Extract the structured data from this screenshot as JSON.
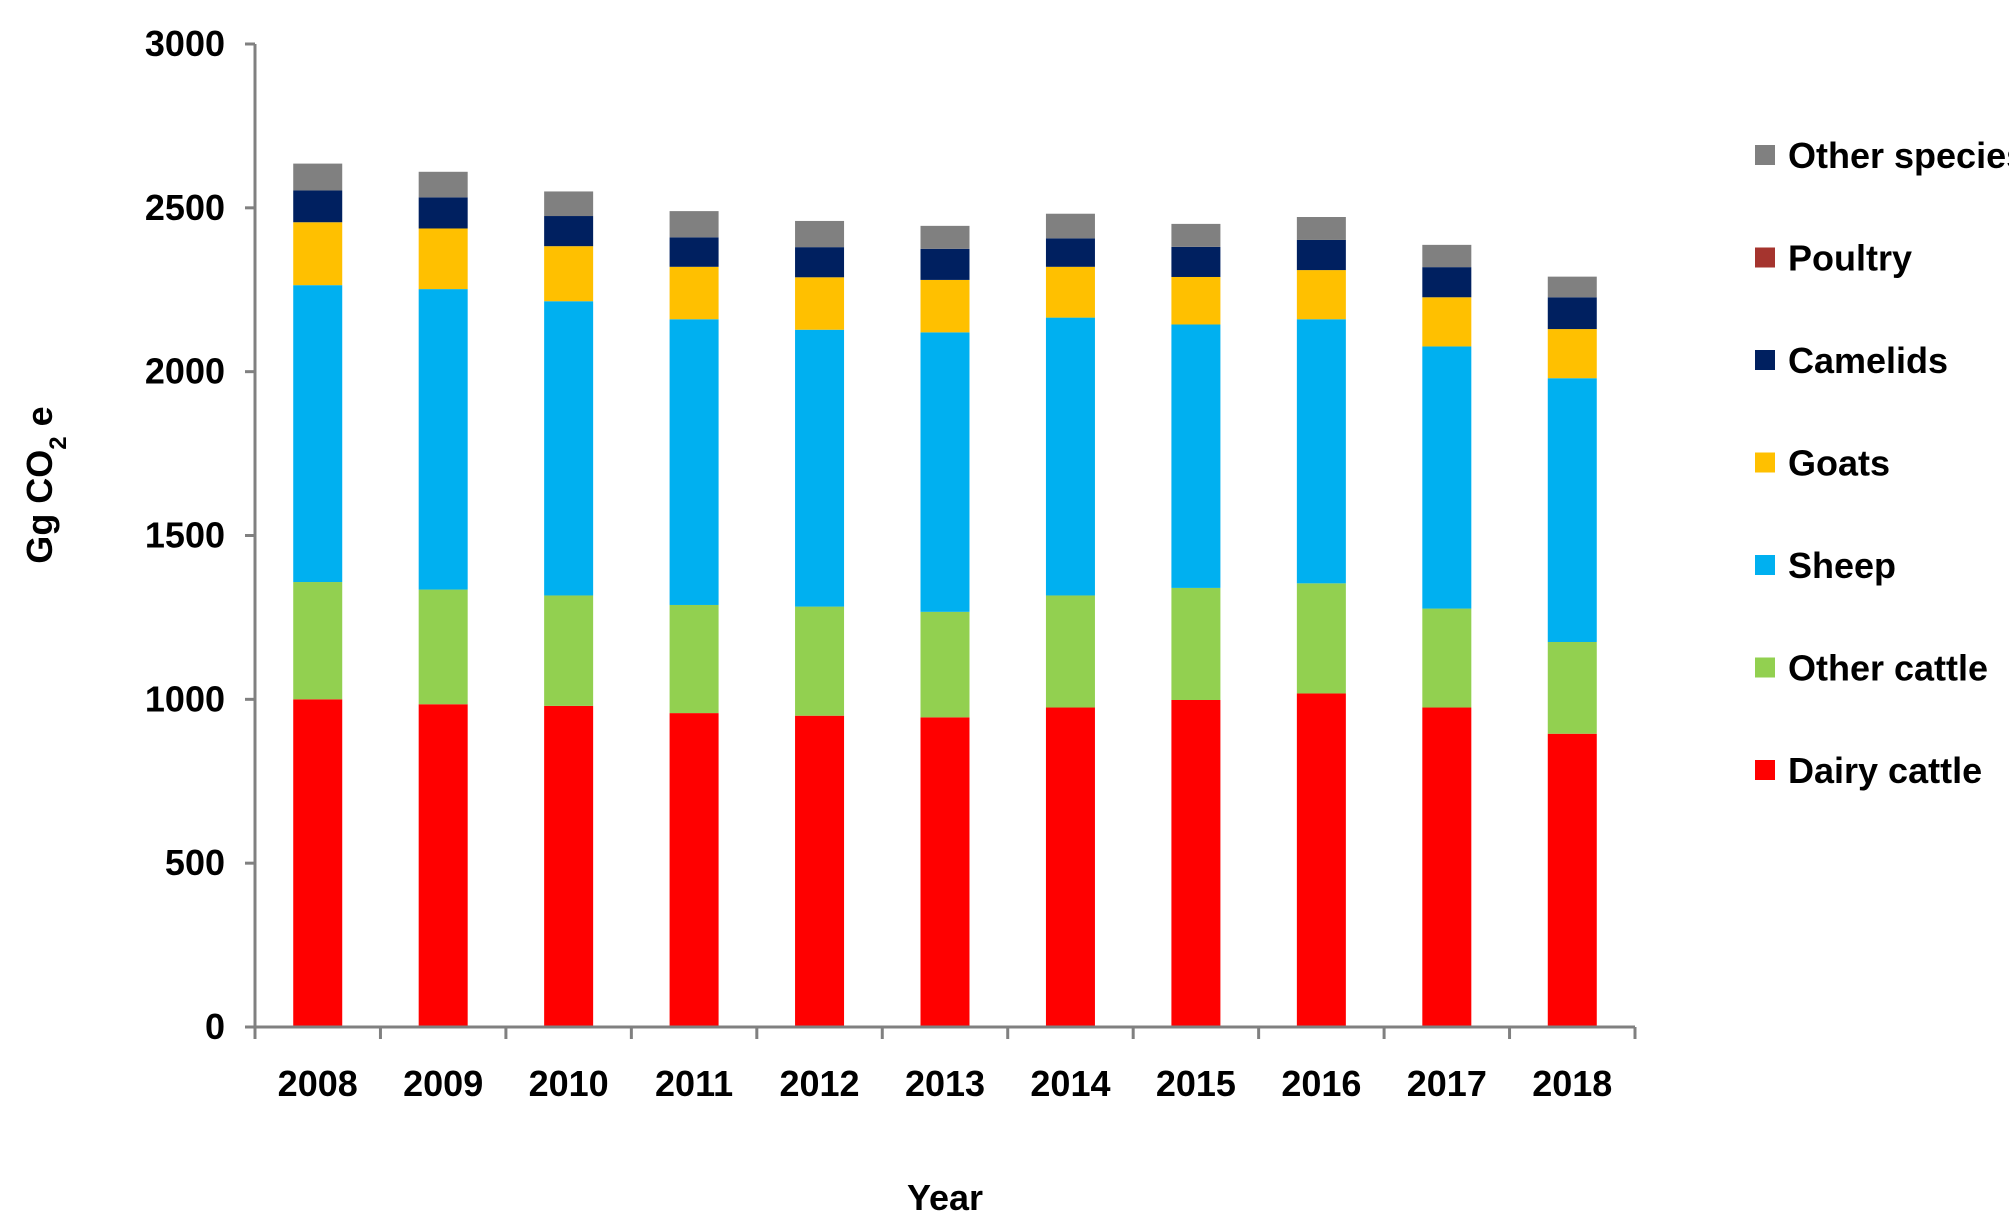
{
  "chart_data": {
    "type": "bar",
    "stacked": true,
    "title": "",
    "xlabel": "Year",
    "ylabel": {
      "prefix": "Gg  CO",
      "subscript": "2",
      "suffix": " e"
    },
    "ylim": [
      0,
      3000
    ],
    "yticks": [
      0,
      500,
      1000,
      1500,
      2000,
      2500,
      3000
    ],
    "categories": [
      "2008",
      "2009",
      "2010",
      "2011",
      "2012",
      "2013",
      "2014",
      "2015",
      "2016",
      "2017",
      "2018"
    ],
    "legend_position": "right",
    "series": [
      {
        "name": "Dairy cattle",
        "color": "#FF0000",
        "values": [
          1000,
          985,
          980,
          958,
          950,
          945,
          975,
          998,
          1018,
          975,
          895
        ]
      },
      {
        "name": "Other cattle",
        "color": "#92D050",
        "values": [
          358,
          350,
          337,
          330,
          333,
          322,
          342,
          342,
          336,
          302,
          280
        ]
      },
      {
        "name": "Sheep",
        "color": "#00B0F0",
        "values": [
          906,
          917,
          898,
          872,
          845,
          853,
          848,
          804,
          806,
          800,
          805
        ]
      },
      {
        "name": "Goats",
        "color": "#FFC000",
        "values": [
          192,
          185,
          168,
          160,
          160,
          160,
          155,
          145,
          150,
          150,
          150
        ]
      },
      {
        "name": "Camelids",
        "color": "#002060",
        "values": [
          97,
          95,
          92,
          90,
          92,
          95,
          87,
          92,
          92,
          92,
          97
        ]
      },
      {
        "name": "Poultry",
        "color": "#A5342E",
        "values": [
          0,
          0,
          0,
          0,
          0,
          0,
          0,
          0,
          0,
          0,
          0
        ]
      },
      {
        "name": "Other species",
        "color": "#808080",
        "values": [
          82,
          78,
          75,
          80,
          80,
          70,
          75,
          70,
          70,
          68,
          63
        ]
      }
    ]
  }
}
